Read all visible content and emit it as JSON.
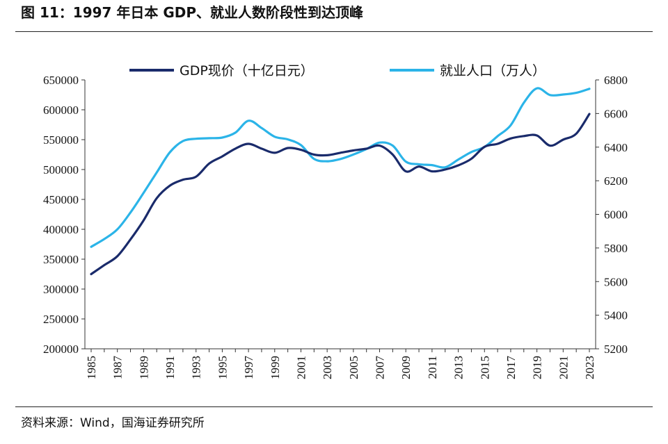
{
  "figure": {
    "title": "图 11：1997 年日本 GDP、就业人数阶段性到达顶峰",
    "source": "资料来源：Wind，国海证券研究所"
  },
  "colors": {
    "gdp": "#1a2b6b",
    "employment": "#2bb4e8",
    "axis": "#333333"
  },
  "chart_data": {
    "type": "line",
    "title": "",
    "x": [
      1985,
      1986,
      1987,
      1988,
      1989,
      1990,
      1991,
      1992,
      1993,
      1994,
      1995,
      1996,
      1997,
      1998,
      1999,
      2000,
      2001,
      2002,
      2003,
      2004,
      2005,
      2006,
      2007,
      2008,
      2009,
      2010,
      2011,
      2012,
      2013,
      2014,
      2015,
      2016,
      2017,
      2018,
      2019,
      2020,
      2021,
      2022,
      2023
    ],
    "x_tick_labels": [
      "1985",
      "1987",
      "1989",
      "1991",
      "1993",
      "1995",
      "1997",
      "1999",
      "2001",
      "2003",
      "2005",
      "2007",
      "2009",
      "2011",
      "2013",
      "2015",
      "2017",
      "2019",
      "2021",
      "2023"
    ],
    "left_axis": {
      "ylim": [
        200000,
        650000
      ],
      "ticks": [
        "200000",
        "250000",
        "300000",
        "350000",
        "400000",
        "450000",
        "500000",
        "550000",
        "600000",
        "650000"
      ]
    },
    "right_axis": {
      "ylim": [
        5200,
        6800
      ],
      "ticks": [
        "5200",
        "5400",
        "5600",
        "5800",
        "6000",
        "6200",
        "6400",
        "6600",
        "6800"
      ]
    },
    "legend_position": "top",
    "series": [
      {
        "name": "GDP现价（十亿日元）",
        "axis": "left",
        "color": "#1a2b6b",
        "values": [
          325000,
          340000,
          355000,
          383000,
          415000,
          452000,
          473000,
          483000,
          488000,
          510000,
          522000,
          535000,
          543000,
          535000,
          528000,
          536000,
          533000,
          525000,
          524000,
          528000,
          532000,
          535000,
          540000,
          525000,
          497000,
          505000,
          497000,
          500000,
          507000,
          518000,
          538000,
          543000,
          552000,
          556000,
          557000,
          540000,
          550000,
          560000,
          593000
        ]
      },
      {
        "name": "就业人口（万人）",
        "axis": "right",
        "color": "#2bb4e8",
        "values": [
          5807,
          5853,
          5911,
          6011,
          6128,
          6249,
          6369,
          6436,
          6450,
          6453,
          6457,
          6486,
          6557,
          6514,
          6462,
          6446,
          6412,
          6330,
          6316,
          6329,
          6356,
          6389,
          6427,
          6409,
          6314,
          6298,
          6293,
          6280,
          6326,
          6371,
          6401,
          6465,
          6530,
          6664,
          6750,
          6710,
          6713,
          6723,
          6747
        ]
      }
    ]
  }
}
